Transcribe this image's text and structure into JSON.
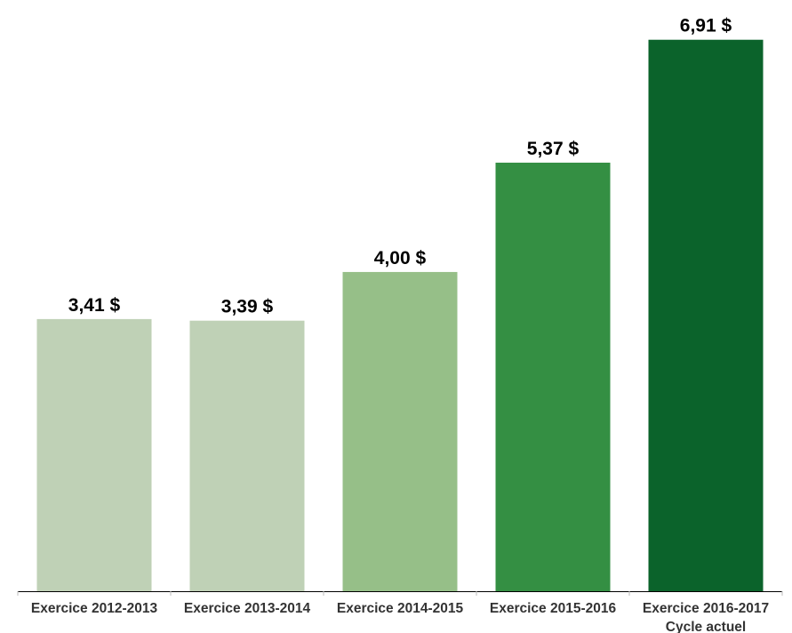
{
  "chart_data": {
    "type": "bar",
    "title": "",
    "xlabel": "",
    "ylabel": "",
    "ylim": [
      0,
      7.23
    ],
    "grid": false,
    "legend": "none",
    "categories": [
      [
        "Exercice 2012-2013"
      ],
      [
        "Exercice 2013-2014"
      ],
      [
        "Exercice 2014-2015"
      ],
      [
        "Exercice 2015-2016"
      ],
      [
        "Exercice 2016-2017",
        "Cycle actuel"
      ]
    ],
    "values": [
      3.41,
      3.39,
      4.0,
      5.37,
      6.91
    ],
    "value_labels": [
      "3,41 $",
      "3,39 $",
      "4,00 $",
      "5,37 $",
      "6,91 $"
    ],
    "colors": [
      "#bfd1b6",
      "#bfd1b6",
      "#96bf88",
      "#348f43",
      "#0b632b"
    ],
    "axis_color": "#000000"
  }
}
